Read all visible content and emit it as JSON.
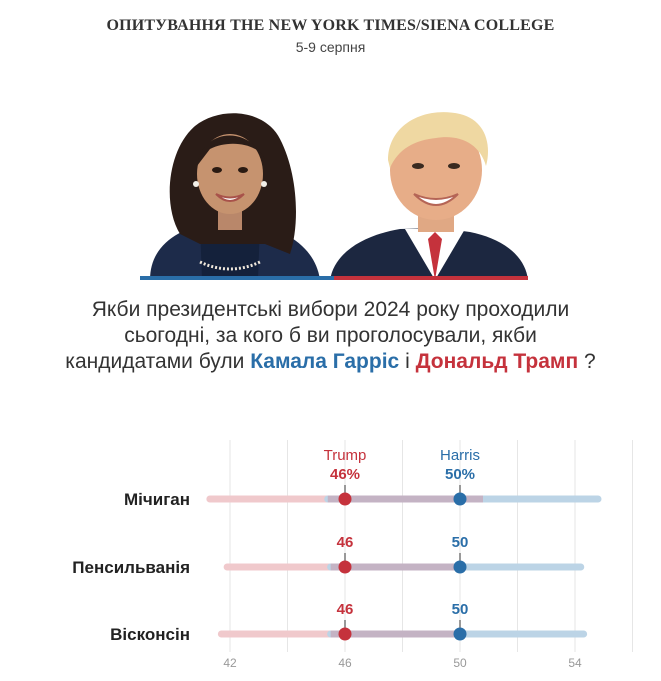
{
  "header": {
    "title": "ОПИТУВАННЯ THE NEW YORK TIMES/SIENA COLLEGE",
    "date": "5-9 серпня"
  },
  "question": {
    "part1": "Якби президентські вибори 2024 року проходили сьогодні, за кого б ви проголосували, якби кандидатами були",
    "harris_name": "Камала Гарріс",
    "connector": "і",
    "trump_name": "Дональд Трамп",
    "end": "?"
  },
  "colors": {
    "harris": "#2a6ea8",
    "trump": "#c5323c",
    "harris_band": "#bcd4e6",
    "trump_band": "#f0c9cc",
    "overlap_band": "#c4b3c4"
  },
  "chart_data": {
    "type": "dot-range",
    "xlim": [
      41,
      55.2
    ],
    "ticks": [
      42,
      46,
      50,
      54
    ],
    "series": [
      {
        "name": "Trump",
        "color": "#c5323c"
      },
      {
        "name": "Harris",
        "color": "#2a6ea8"
      }
    ],
    "rows": [
      {
        "state": "Мічиган",
        "trump": 46,
        "harris": 50,
        "trump_label": "46%",
        "harris_label": "50%",
        "trump_range": [
          41.3,
          50.8
        ],
        "harris_range": [
          45.4,
          54.8
        ]
      },
      {
        "state": "Пенсильванія",
        "trump": 46,
        "harris": 50,
        "trump_label": "46",
        "harris_label": "50",
        "trump_range": [
          41.9,
          50.2
        ],
        "harris_range": [
          45.5,
          54.2
        ]
      },
      {
        "state": "Вісконсін",
        "trump": 46,
        "harris": 50,
        "trump_label": "46",
        "harris_label": "50",
        "trump_range": [
          41.7,
          50.2
        ],
        "harris_range": [
          45.5,
          54.3
        ]
      }
    ]
  }
}
